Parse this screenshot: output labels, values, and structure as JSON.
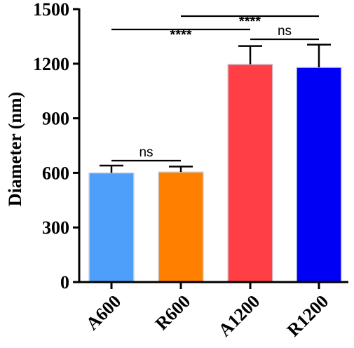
{
  "chart_data": {
    "type": "bar",
    "categories": [
      "A600",
      "R600",
      "A1200",
      "R1200"
    ],
    "values": [
      600,
      605,
      1197,
      1180
    ],
    "errors": [
      40,
      30,
      100,
      125
    ],
    "colors": [
      "#4d9ffa",
      "#ff7f00",
      "#ff3e46",
      "#0000f4"
    ],
    "title": "",
    "xlabel": "",
    "ylabel": "Diameter (nm)",
    "ylim": [
      0,
      1500
    ],
    "yticks": [
      0,
      300,
      600,
      900,
      1200,
      1500
    ],
    "grid": false,
    "comparisons": [
      {
        "from": 0,
        "to": 1,
        "label": "ns",
        "level": 1
      },
      {
        "from": 0,
        "to": 2,
        "label": "****",
        "level": 2
      },
      {
        "from": 2,
        "to": 3,
        "label": "ns",
        "level": 3
      },
      {
        "from": 1,
        "to": 3,
        "label": "****",
        "level": 4
      }
    ]
  }
}
